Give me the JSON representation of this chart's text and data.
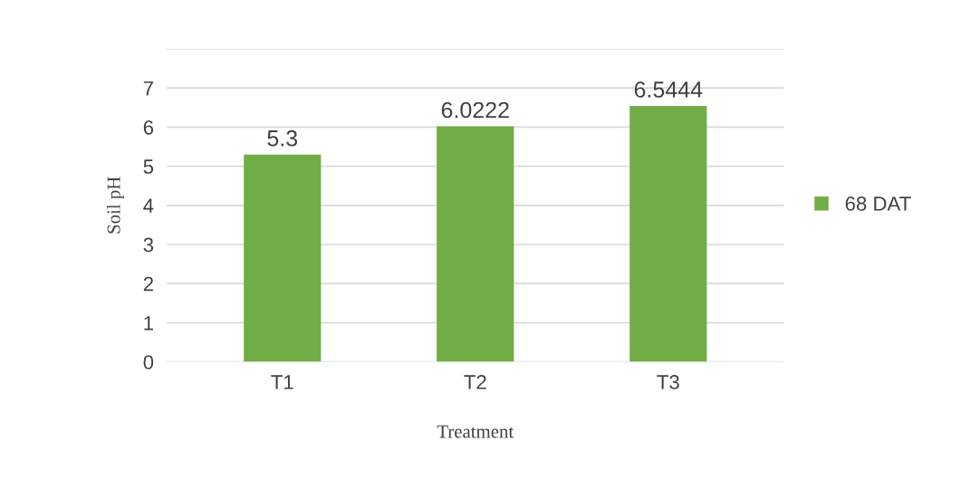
{
  "chart_data": {
    "type": "bar",
    "xlabel": "Treatment",
    "ylabel": "Soil pH",
    "categories": [
      "T1",
      "T2",
      "T3"
    ],
    "series": [
      {
        "name": "68 DAT",
        "color": "#70ad47",
        "values": [
          5.3,
          6.0222,
          6.5444
        ]
      }
    ],
    "ylim": [
      0,
      8
    ],
    "yticks": [
      0,
      1,
      2,
      3,
      4,
      5,
      6,
      7,
      {
        "value": 8,
        "label": null
      }
    ],
    "grid": "y",
    "legend": "right",
    "data_labels": true
  }
}
